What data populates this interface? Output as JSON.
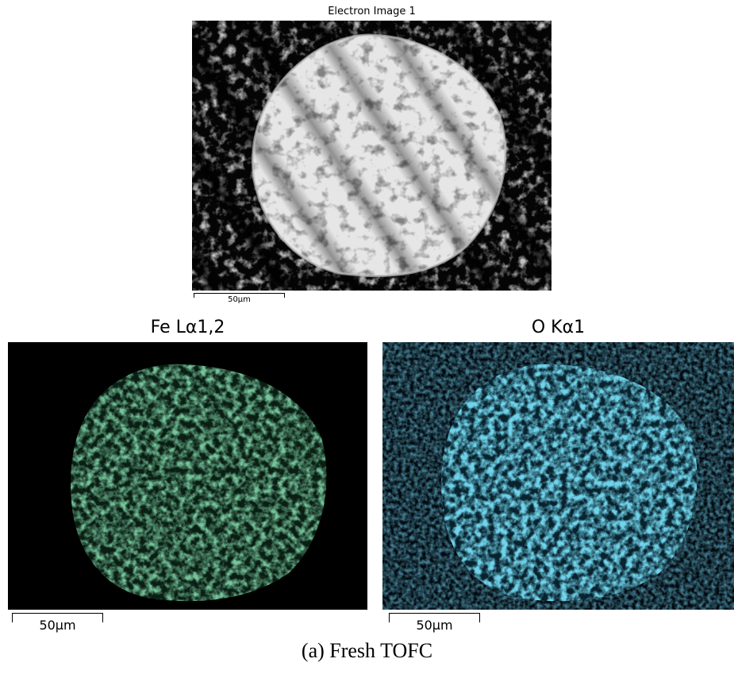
{
  "electron_image": {
    "title": "Electron Image 1",
    "scale_label": "50µm"
  },
  "fe_map": {
    "title": "Fe Lα1,2",
    "scale_label": "50µm",
    "color": "#2f8a52"
  },
  "o_map": {
    "title": "O Kα1",
    "scale_label": "50µm",
    "color": "#2aa6cf"
  },
  "caption": "(a) Fresh TOFC"
}
